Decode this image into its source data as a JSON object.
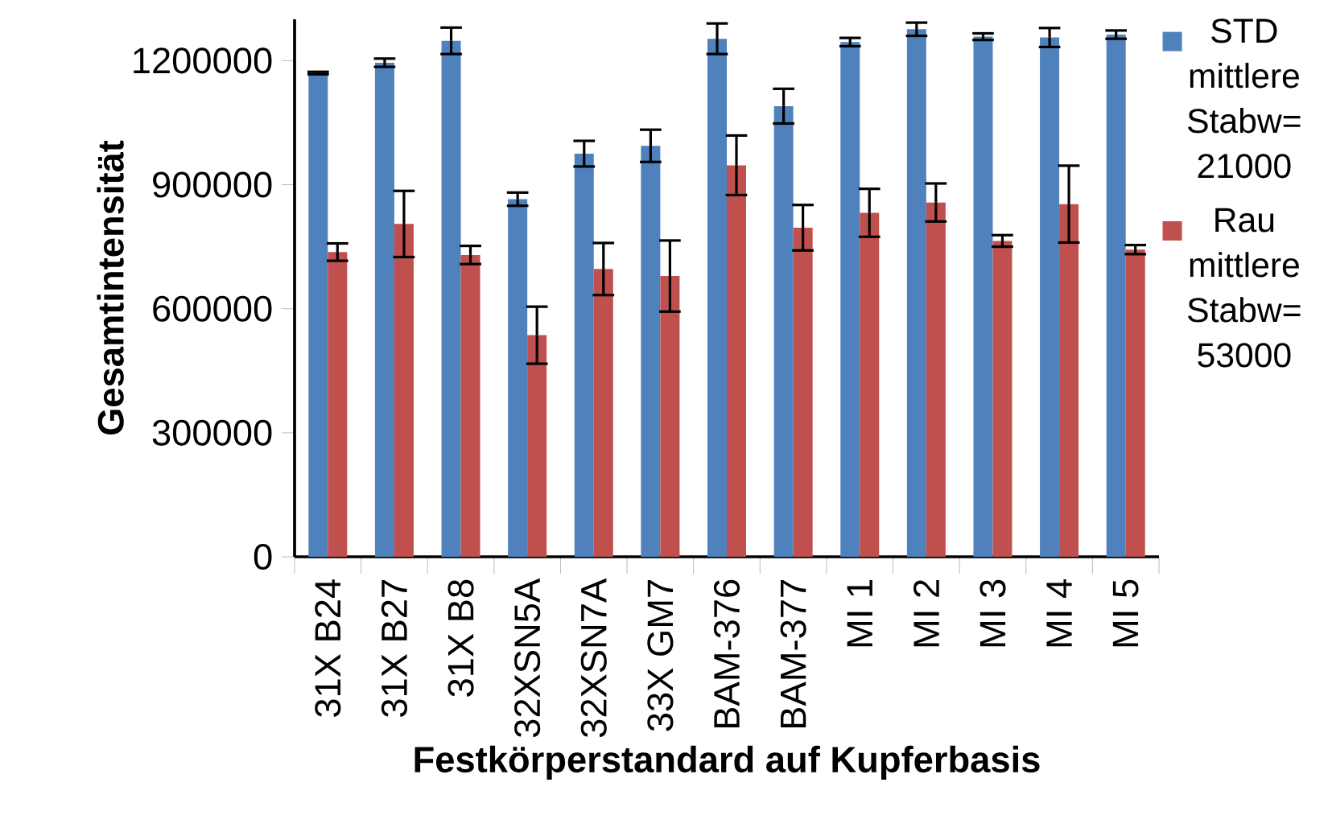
{
  "chart_data": {
    "type": "bar",
    "xlabel": "Festkörperstandard auf Kupferbasis",
    "ylabel": "Gesamtintensität",
    "categories": [
      "31X B24",
      "31X B27",
      "31X B8",
      "32XSN5A",
      "32XSN7A",
      "33X GM7",
      "BAM-376",
      "BAM-377",
      "MI 1",
      "MI 2",
      "MI 3",
      "MI 4",
      "MI 5"
    ],
    "series": [
      {
        "name": "STD mittlere Stabw= 21000",
        "color": "#4f81bd",
        "values": [
          1170000,
          1195000,
          1248000,
          865000,
          975000,
          994000,
          1253000,
          1090000,
          1245000,
          1276000,
          1258000,
          1256000,
          1263000
        ],
        "errors": [
          3000,
          10000,
          32000,
          16000,
          31000,
          39000,
          37000,
          42000,
          10000,
          16000,
          8000,
          23000,
          10000
        ]
      },
      {
        "name": "Rau mittlere Stabw= 53000",
        "color": "#c0504d",
        "values": [
          737000,
          805000,
          730000,
          536000,
          696000,
          679000,
          947000,
          796000,
          832000,
          857000,
          764000,
          853000,
          743000
        ],
        "errors": [
          21000,
          80000,
          22000,
          69000,
          63000,
          86000,
          72000,
          55000,
          58000,
          46000,
          14000,
          93000,
          11000
        ]
      }
    ],
    "ylim": [
      0,
      1300000
    ],
    "yticks": [
      0,
      300000,
      600000,
      900000,
      1200000
    ],
    "legend": "right"
  }
}
